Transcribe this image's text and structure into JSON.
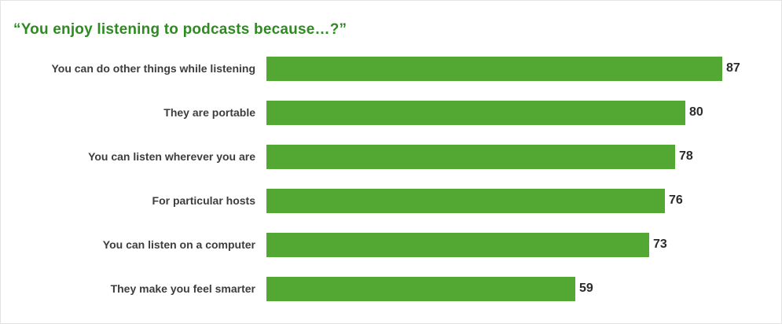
{
  "chart_data": {
    "type": "bar",
    "orientation": "horizontal",
    "title": "“You enjoy listening to podcasts because…?”",
    "categories": [
      "You can do other things while listening",
      "They are portable",
      "You can listen wherever you are",
      "For particular hosts",
      "You can listen on a computer",
      "They make you feel smarter"
    ],
    "values": [
      87,
      80,
      78,
      76,
      73,
      59
    ],
    "xlim": [
      0,
      90
    ],
    "grid": false,
    "legend": false,
    "data_labels": true,
    "bar_color": "#53a833",
    "title_color": "#2e8b22",
    "label_color": "#3d3d3d",
    "value_color": "#2b2b2b"
  }
}
